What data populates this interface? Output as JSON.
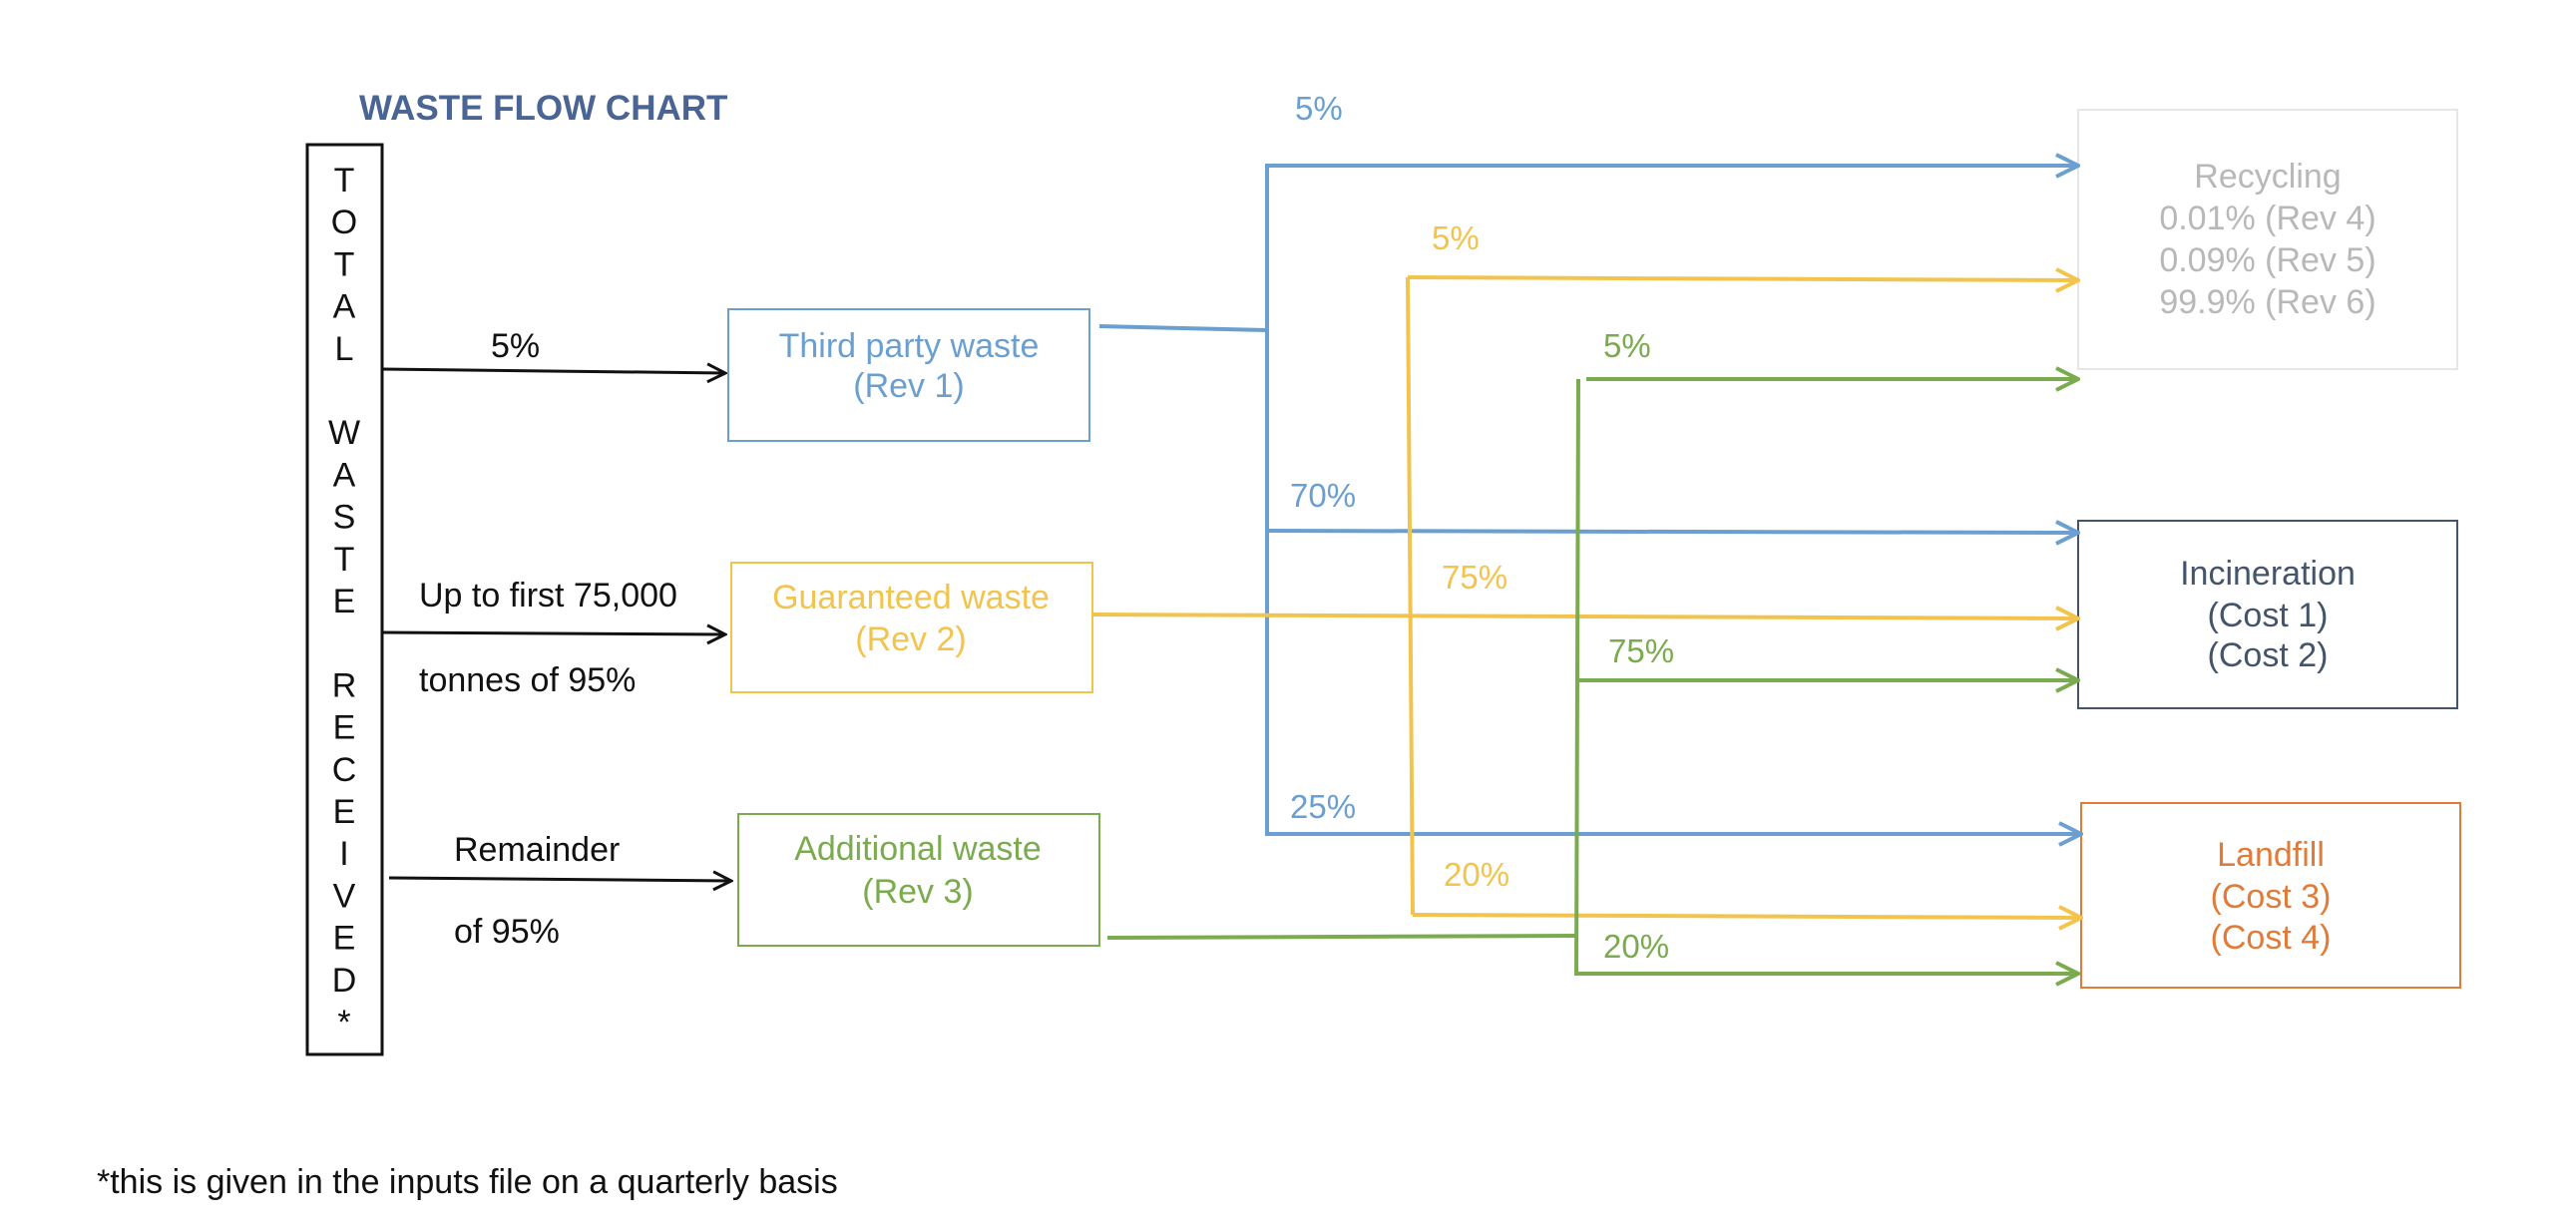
{
  "title": "WASTE FLOW CHART",
  "total_label": [
    "T",
    "O",
    "T",
    "A",
    "L",
    "",
    "W",
    "A",
    "S",
    "T",
    "E",
    "",
    "R",
    "E",
    "C",
    "E",
    "I",
    "V",
    "E",
    "D",
    "*"
  ],
  "inputs": {
    "third_party_pct": "5%",
    "guaranteed_line1": "Up to first 75,000",
    "guaranteed_line2": "tonnes of 95%",
    "additional_line1": "Remainder",
    "additional_line2": "of 95%"
  },
  "streams": {
    "third_party": {
      "line1": "Third party waste",
      "line2": "(Rev 1)",
      "color": "#6a9fd0"
    },
    "guaranteed": {
      "line1": "Guaranteed waste",
      "line2": "(Rev 2)",
      "color": "#f2c44e"
    },
    "additional": {
      "line1": "Additional waste",
      "line2": "(Rev 3)",
      "color": "#7aab4e"
    }
  },
  "destinations": {
    "recycling": {
      "lines": [
        "Recycling",
        "0.01% (Rev 4)",
        "0.09% (Rev 5)",
        "99.9% (Rev 6)"
      ],
      "color": "#b8b8b8",
      "border": "#e6e6e6"
    },
    "incineration": {
      "lines": [
        "Incineration",
        "(Cost 1)",
        "(Cost 2)"
      ],
      "color": "#44546a",
      "border": "#44546a"
    },
    "landfill": {
      "lines": [
        "Landfill",
        "(Cost 3)",
        "(Cost 4)"
      ],
      "color": "#e07b39",
      "border": "#e07b39"
    }
  },
  "splits": {
    "blue": {
      "recycling": "5%",
      "incineration": "70%",
      "landfill": "25%"
    },
    "yellow": {
      "recycling": "5%",
      "incineration": "75%",
      "landfill": "20%"
    },
    "green": {
      "recycling": "5%",
      "incineration": "75%",
      "landfill": "20%"
    }
  },
  "footnote": "*this is given in the inputs file on a quarterly basis",
  "colors": {
    "title": "#4a6494",
    "black": "#111111"
  }
}
